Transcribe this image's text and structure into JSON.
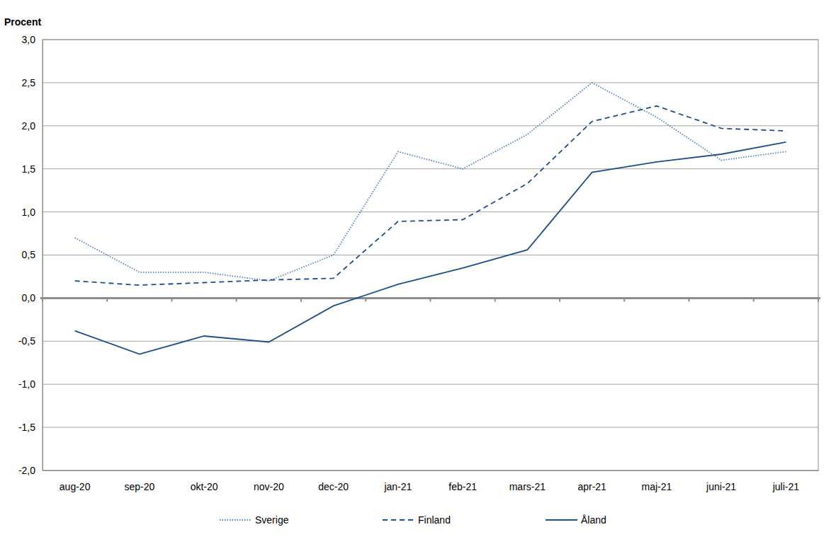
{
  "chart_data": {
    "type": "line",
    "y_label": "Procent",
    "categories": [
      "aug-20",
      "sep-20",
      "okt-20",
      "nov-20",
      "dec-20",
      "jan-21",
      "feb-21",
      "mars-21",
      "apr-21",
      "maj-21",
      "juni-21",
      "juli-21"
    ],
    "series": [
      {
        "name": "Sverige",
        "color": "#4f81bd",
        "line_style": "dotted",
        "values": [
          0.7,
          0.3,
          0.3,
          0.2,
          0.5,
          1.7,
          1.5,
          1.9,
          2.5,
          2.1,
          1.6,
          1.7
        ]
      },
      {
        "name": "Finland",
        "color": "#1f4e8c",
        "line_style": "dashed",
        "values": [
          0.2,
          0.15,
          0.18,
          0.21,
          0.23,
          0.89,
          0.91,
          1.33,
          2.05,
          2.23,
          1.97,
          1.94
        ]
      },
      {
        "name": "Åland",
        "color": "#1f4e8c",
        "line_style": "solid",
        "values": [
          -0.38,
          -0.65,
          -0.44,
          -0.51,
          -0.09,
          0.16,
          0.35,
          0.56,
          1.46,
          1.58,
          1.67,
          1.81
        ]
      }
    ],
    "ylim": [
      -2.0,
      3.0
    ],
    "yticks": [
      {
        "value": -2.0,
        "label": "-2,0"
      },
      {
        "value": -1.5,
        "label": "-1,5"
      },
      {
        "value": -1.0,
        "label": "-1,0"
      },
      {
        "value": -0.5,
        "label": "-0,5"
      },
      {
        "value": 0.0,
        "label": "0,0"
      },
      {
        "value": 0.5,
        "label": "0,5"
      },
      {
        "value": 1.0,
        "label": "1,0"
      },
      {
        "value": 1.5,
        "label": "1,5"
      },
      {
        "value": 2.0,
        "label": "2,0"
      },
      {
        "value": 2.5,
        "label": "2,5"
      },
      {
        "value": 3.0,
        "label": "3,0"
      }
    ],
    "grid": true,
    "legend": "bottom"
  }
}
